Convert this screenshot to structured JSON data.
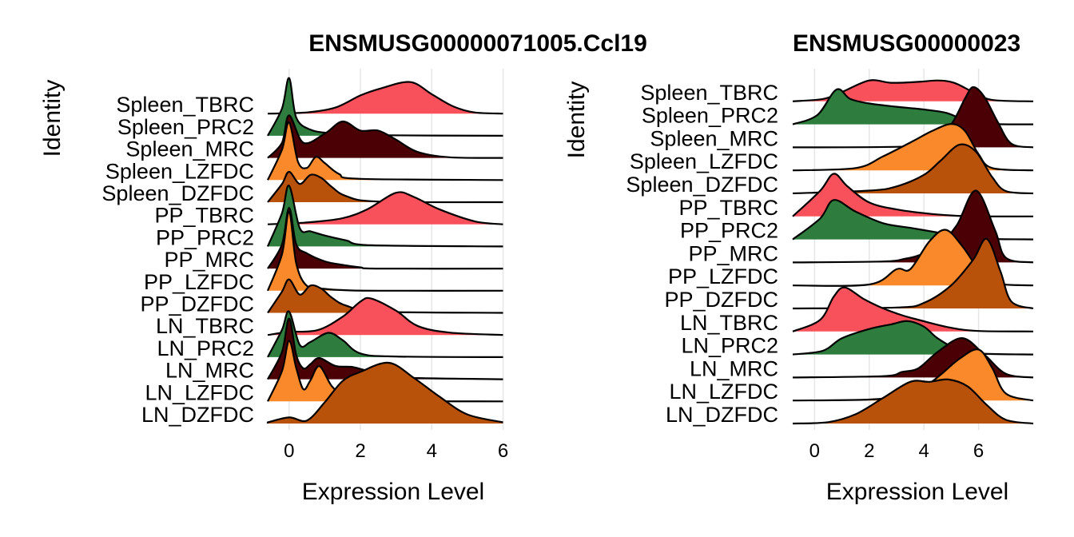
{
  "palette": {
    "TBRC": "#F8515B",
    "PRC2": "#2E7D3E",
    "MRC": "#4A0004",
    "LZFDC": "#F9892A",
    "DZFDC": "#B8520A"
  },
  "chart_data": [
    {
      "type": "ridgeline",
      "title": "ENSMUSG00000071005.Ccl19",
      "xlabel": "Expression Level",
      "ylabel": "Identity",
      "xlim": [
        -0.6,
        6.1
      ],
      "xticks": [
        0,
        2,
        4,
        6
      ],
      "grid": true,
      "categories": [
        "LN_DZFDC",
        "LN_LZFDC",
        "LN_MRC",
        "LN_PRC2",
        "LN_TBRC",
        "PP_DZFDC",
        "PP_LZFDC",
        "PP_MRC",
        "PP_PRC2",
        "PP_TBRC",
        "Spleen_DZFDC",
        "Spleen_LZFDC",
        "Spleen_MRC",
        "Spleen_PRC2",
        "Spleen_TBRC"
      ],
      "series": [
        {
          "category": "LN_DZFDC",
          "x": [
            -0.6,
            0.0,
            0.5,
            1.0,
            1.5,
            2.0,
            2.8,
            3.5,
            4.2,
            5.0,
            6.0
          ],
          "density": [
            0.02,
            0.1,
            0.05,
            0.35,
            0.7,
            0.85,
            1.0,
            0.75,
            0.45,
            0.15,
            0.02
          ]
        },
        {
          "category": "LN_LZFDC",
          "x": [
            -0.6,
            -0.2,
            0.0,
            0.2,
            0.4,
            0.6,
            0.85,
            1.2,
            1.6,
            2.2,
            6.0
          ],
          "density": [
            0.0,
            0.5,
            1.0,
            0.55,
            0.2,
            0.35,
            0.58,
            0.25,
            0.06,
            0.01,
            0.0
          ]
        },
        {
          "category": "LN_MRC",
          "x": [
            -0.6,
            -0.2,
            0.0,
            0.2,
            0.4,
            0.6,
            0.85,
            1.3,
            1.8,
            2.3,
            3.0,
            6.0
          ],
          "density": [
            0.0,
            0.45,
            1.0,
            0.4,
            0.18,
            0.25,
            0.35,
            0.22,
            0.2,
            0.12,
            0.03,
            0.0
          ]
        },
        {
          "category": "LN_PRC2",
          "x": [
            -0.6,
            -0.2,
            0.0,
            0.3,
            0.6,
            1.1,
            1.5,
            2.0,
            3.0,
            6.0
          ],
          "density": [
            0.0,
            0.45,
            0.75,
            0.2,
            0.25,
            0.4,
            0.28,
            0.06,
            0.01,
            0.0
          ]
        },
        {
          "category": "LN_TBRC",
          "x": [
            -0.6,
            0.0,
            0.8,
            1.5,
            2.0,
            2.3,
            3.0,
            3.6,
            4.5,
            6.0
          ],
          "density": [
            0.0,
            0.05,
            0.08,
            0.3,
            0.55,
            0.6,
            0.4,
            0.15,
            0.04,
            0.0
          ]
        },
        {
          "category": "PP_DZFDC",
          "x": [
            -0.6,
            -0.2,
            0.0,
            0.3,
            0.6,
            0.9,
            1.2,
            1.6,
            2.5,
            6.0
          ],
          "density": [
            0.0,
            0.35,
            0.55,
            0.3,
            0.45,
            0.4,
            0.25,
            0.12,
            0.02,
            0.0
          ]
        },
        {
          "category": "PP_LZFDC",
          "x": [
            -0.6,
            -0.2,
            0.0,
            0.2,
            0.5,
            1.0,
            1.5,
            2.5,
            6.0
          ],
          "density": [
            0.0,
            0.6,
            1.3,
            0.45,
            0.08,
            0.03,
            0.01,
            0.0,
            0.0
          ]
        },
        {
          "category": "PP_MRC",
          "x": [
            -0.6,
            -0.2,
            0.0,
            0.2,
            0.5,
            1.0,
            1.5,
            2.0,
            2.5,
            6.0
          ],
          "density": [
            0.0,
            0.4,
            1.0,
            0.4,
            0.25,
            0.12,
            0.06,
            0.02,
            0.0,
            0.0
          ]
        },
        {
          "category": "PP_PRC2",
          "x": [
            -0.6,
            -0.2,
            0.0,
            0.3,
            0.6,
            1.0,
            1.6,
            2.3,
            6.0
          ],
          "density": [
            0.0,
            0.55,
            1.0,
            0.3,
            0.25,
            0.18,
            0.1,
            0.02,
            0.0
          ]
        },
        {
          "category": "PP_TBRC",
          "x": [
            -0.6,
            0.5,
            1.5,
            2.2,
            3.0,
            3.5,
            4.2,
            5.2,
            6.0
          ],
          "density": [
            0.0,
            0.03,
            0.1,
            0.25,
            0.52,
            0.45,
            0.25,
            0.05,
            0.0
          ]
        },
        {
          "category": "Spleen_DZFDC",
          "x": [
            -0.6,
            -0.2,
            0.0,
            0.3,
            0.6,
            0.9,
            1.2,
            1.6,
            2.5,
            6.0
          ],
          "density": [
            0.0,
            0.3,
            0.5,
            0.3,
            0.45,
            0.4,
            0.25,
            0.1,
            0.01,
            0.0
          ]
        },
        {
          "category": "Spleen_LZFDC",
          "x": [
            -0.6,
            -0.2,
            0.0,
            0.25,
            0.5,
            0.75,
            1.0,
            1.4,
            2.0,
            6.0
          ],
          "density": [
            0.0,
            0.5,
            0.95,
            0.3,
            0.2,
            0.38,
            0.28,
            0.1,
            0.02,
            0.0
          ]
        },
        {
          "category": "Spleen_MRC",
          "x": [
            -0.6,
            -0.2,
            0.0,
            0.4,
            1.0,
            1.5,
            2.0,
            2.5,
            3.0,
            3.6,
            4.5,
            6.0
          ],
          "density": [
            0.0,
            0.25,
            0.7,
            0.25,
            0.4,
            0.6,
            0.45,
            0.45,
            0.3,
            0.1,
            0.01,
            0.0
          ]
        },
        {
          "category": "Spleen_PRC2",
          "x": [
            -0.6,
            -0.2,
            0.0,
            0.2,
            0.6,
            1.2,
            2.0,
            6.0
          ],
          "density": [
            0.0,
            0.45,
            0.95,
            0.3,
            0.1,
            0.04,
            0.01,
            0.0
          ]
        },
        {
          "category": "Spleen_TBRC",
          "x": [
            -0.6,
            0.5,
            1.3,
            2.0,
            2.6,
            3.4,
            4.0,
            4.6,
            5.2,
            6.0
          ],
          "density": [
            0.0,
            0.02,
            0.1,
            0.3,
            0.42,
            0.52,
            0.32,
            0.12,
            0.02,
            0.0
          ]
        }
      ]
    },
    {
      "type": "ridgeline",
      "title": "ENSMUSG00000023",
      "xlabel": "Expression Level",
      "ylabel": "Identity",
      "xlim": [
        -0.8,
        8.0
      ],
      "xticks": [
        0,
        2,
        4,
        6
      ],
      "grid": true,
      "categories": [
        "LN_DZFDC",
        "LN_LZFDC",
        "LN_MRC",
        "LN_PRC2",
        "LN_TBRC",
        "PP_DZFDC",
        "PP_LZFDC",
        "PP_MRC",
        "PP_PRC2",
        "PP_TBRC",
        "Spleen_DZFDC",
        "Spleen_LZFDC",
        "Spleen_MRC",
        "Spleen_PRC2",
        "Spleen_TBRC"
      ],
      "series": [
        {
          "category": "LN_DZFDC",
          "x": [
            -0.8,
            0.5,
            1.5,
            2.5,
            3.5,
            4.2,
            4.9,
            5.6,
            6.3,
            7.0,
            8.0
          ],
          "density": [
            0.0,
            0.03,
            0.2,
            0.55,
            0.9,
            0.9,
            0.95,
            0.8,
            0.4,
            0.08,
            0.0
          ]
        },
        {
          "category": "LN_LZFDC",
          "x": [
            -0.8,
            2.0,
            3.0,
            4.0,
            4.6,
            5.3,
            6.0,
            6.5,
            7.0,
            8.0
          ],
          "density": [
            0.0,
            0.02,
            0.1,
            0.3,
            0.55,
            0.9,
            1.1,
            0.7,
            0.15,
            0.0
          ]
        },
        {
          "category": "LN_MRC",
          "x": [
            -0.8,
            2.5,
            3.2,
            3.8,
            4.5,
            5.4,
            6.2,
            7.0,
            8.0
          ],
          "density": [
            0.0,
            0.03,
            0.12,
            0.2,
            0.55,
            0.85,
            0.5,
            0.08,
            0.0
          ]
        },
        {
          "category": "LN_PRC2",
          "x": [
            -0.8,
            0.3,
            1.0,
            2.0,
            2.8,
            3.4,
            4.0,
            4.5,
            5.2,
            6.0,
            8.0
          ],
          "density": [
            0.0,
            0.08,
            0.35,
            0.55,
            0.65,
            0.72,
            0.6,
            0.35,
            0.12,
            0.02,
            0.0
          ]
        },
        {
          "category": "LN_TBRC",
          "x": [
            -0.8,
            0.2,
            0.7,
            1.1,
            1.8,
            2.5,
            3.2,
            4.0,
            5.0,
            6.0,
            8.0
          ],
          "density": [
            0.0,
            0.25,
            0.75,
            0.95,
            0.7,
            0.5,
            0.35,
            0.22,
            0.08,
            0.01,
            0.0
          ]
        },
        {
          "category": "PP_DZFDC",
          "x": [
            -0.8,
            3.0,
            4.0,
            5.0,
            5.8,
            6.3,
            6.8,
            7.2,
            8.0
          ],
          "density": [
            0.0,
            0.02,
            0.12,
            0.5,
            1.05,
            1.5,
            0.8,
            0.15,
            0.0
          ]
        },
        {
          "category": "PP_LZFDC",
          "x": [
            -0.8,
            2.0,
            3.0,
            3.5,
            4.2,
            4.8,
            5.4,
            6.0,
            6.6,
            8.0
          ],
          "density": [
            0.0,
            0.02,
            0.35,
            0.35,
            0.95,
            1.2,
            0.85,
            0.35,
            0.05,
            0.0
          ]
        },
        {
          "category": "PP_MRC",
          "x": [
            -0.8,
            2.5,
            3.3,
            3.8,
            4.5,
            5.2,
            5.9,
            6.6,
            7.0,
            8.0
          ],
          "density": [
            0.0,
            0.02,
            0.08,
            0.15,
            0.35,
            0.8,
            1.55,
            0.7,
            0.1,
            0.0
          ]
        },
        {
          "category": "PP_PRC2",
          "x": [
            -0.8,
            0.2,
            0.7,
            1.5,
            2.5,
            3.5,
            4.5,
            5.5,
            6.5,
            8.0
          ],
          "density": [
            0.0,
            0.45,
            0.85,
            0.6,
            0.35,
            0.25,
            0.15,
            0.05,
            0.01,
            0.0
          ]
        },
        {
          "category": "PP_TBRC",
          "x": [
            -0.8,
            0.2,
            0.7,
            1.2,
            2.0,
            3.0,
            4.0,
            5.0,
            6.0,
            8.0
          ],
          "density": [
            0.0,
            0.55,
            0.92,
            0.65,
            0.3,
            0.15,
            0.07,
            0.02,
            0.0,
            0.0
          ]
        },
        {
          "category": "Spleen_DZFDC",
          "x": [
            -0.8,
            2.0,
            3.0,
            4.0,
            4.6,
            5.3,
            5.9,
            6.5,
            7.0,
            8.0
          ],
          "density": [
            0.0,
            0.06,
            0.15,
            0.4,
            0.7,
            1.05,
            0.9,
            0.35,
            0.05,
            0.0
          ]
        },
        {
          "category": "Spleen_LZFDC",
          "x": [
            -0.8,
            1.5,
            2.5,
            3.5,
            4.3,
            5.0,
            5.5,
            6.0,
            6.5,
            8.0
          ],
          "density": [
            0.0,
            0.05,
            0.3,
            0.6,
            0.85,
            1.0,
            0.85,
            0.35,
            0.05,
            0.0
          ]
        },
        {
          "category": "Spleen_MRC",
          "x": [
            -0.8,
            3.5,
            4.3,
            5.0,
            5.5,
            5.8,
            6.2,
            6.7,
            7.2,
            8.0
          ],
          "density": [
            0.0,
            0.02,
            0.15,
            0.5,
            1.05,
            1.3,
            1.1,
            0.55,
            0.08,
            0.0
          ]
        },
        {
          "category": "Spleen_PRC2",
          "x": [
            -0.8,
            0.1,
            0.8,
            1.3,
            2.0,
            3.0,
            4.0,
            4.8,
            5.5,
            6.5,
            8.0
          ],
          "density": [
            0.0,
            0.2,
            0.75,
            0.55,
            0.45,
            0.38,
            0.32,
            0.25,
            0.1,
            0.01,
            0.0
          ]
        },
        {
          "category": "Spleen_TBRC",
          "x": [
            -0.8,
            0.3,
            1.0,
            2.0,
            2.8,
            3.8,
            4.5,
            5.1,
            5.8,
            6.5,
            8.0
          ],
          "density": [
            0.0,
            0.05,
            0.2,
            0.45,
            0.4,
            0.42,
            0.45,
            0.4,
            0.2,
            0.03,
            0.0
          ]
        }
      ]
    }
  ]
}
